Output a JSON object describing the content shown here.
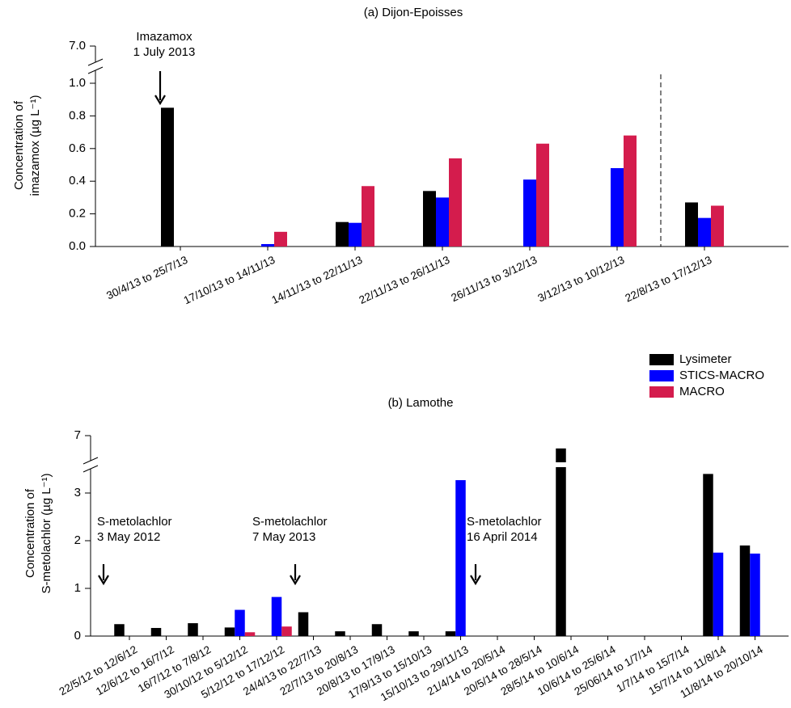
{
  "chart_data": [
    {
      "type": "bar",
      "title": "(a) Dijon-Epoisses",
      "ylabel": [
        "Concentration of",
        "imazamox (µg L⁻¹)"
      ],
      "categories": [
        "30/4/13 to 25/7/13",
        "17/10/13  to 14/11/13",
        "14/11/13 to 22/11/13",
        "22/11/13 to 26/11/13",
        "26/11/13 to 3/12/13",
        "3/12/13 to 10/12/13",
        "22/8/13 to 17/12/13"
      ],
      "series": [
        {
          "color": "#000000",
          "values": [
            0.85,
            null,
            0.15,
            0.34,
            null,
            null,
            0.27
          ]
        },
        {
          "color": "#0000ff",
          "values": [
            null,
            0.015,
            0.145,
            0.3,
            0.41,
            0.48,
            0.175
          ]
        },
        {
          "color": "#d41c4d",
          "values": [
            null,
            0.09,
            0.37,
            0.54,
            0.63,
            0.68,
            0.25
          ]
        }
      ],
      "ylim": [
        0,
        7
      ],
      "yticks": [
        {
          "value": 0,
          "label": "0.0"
        },
        {
          "value": 0.2,
          "label": "0.2"
        },
        {
          "value": 0.4,
          "label": "0.4"
        },
        {
          "value": 0.6,
          "label": "0.6"
        },
        {
          "value": 0.8,
          "label": "0.8"
        },
        {
          "value": 1,
          "label": "1.0"
        },
        {
          "value": 7,
          "label": "7.0"
        }
      ],
      "y_break": true,
      "annotations": [
        [
          "Imazamox",
          "1 July 2013"
        ]
      ]
    },
    {
      "type": "bar",
      "title": "(b) Lamothe",
      "ylabel": [
        "Concentration of",
        "S-metolachlor (µg L⁻¹)"
      ],
      "categories": [
        "22/5/12 to 12/6/12",
        "12/6/12 to 16/7/12",
        "16/7/12 to 7/8/12",
        "30/10/12 to 5/12/12",
        "5/12/12 to 17/12/12",
        "24/4/13 to 22/7/13",
        "22/7/13 to 20/8/13",
        "20/8/13 to 17/9/13",
        "17/9/13 to 15/10/13",
        "15/10/13 to 29/11/13",
        "21/4/14 to 20/5/14",
        "20/5/14 to 28/5/14",
        "28/5/14 to 10/6/14",
        "10/6/14 to 25/6/14",
        "25/06/14 to 1/7/14",
        "1/7/14 to 15/7/14",
        "15/7/14 to 11/8/14",
        "11/8/14 to 20/10/14"
      ],
      "series": [
        {
          "name": "Lysimeter",
          "color": "#000000",
          "values": [
            0.25,
            0.17,
            0.27,
            0.18,
            null,
            0.5,
            0.1,
            0.25,
            0.1,
            0.1,
            null,
            null,
            5.5,
            null,
            null,
            null,
            3.4,
            1.9
          ]
        },
        {
          "name": "STICS-MACRO",
          "color": "#0000ff",
          "values": [
            null,
            null,
            null,
            0.55,
            0.82,
            null,
            null,
            null,
            null,
            3.27,
            null,
            null,
            null,
            null,
            null,
            null,
            1.75,
            1.73
          ]
        },
        {
          "name": "MACRO",
          "color": "#d41c4d",
          "values": [
            null,
            null,
            null,
            0.08,
            0.2,
            null,
            null,
            null,
            null,
            null,
            null,
            null,
            null,
            null,
            null,
            null,
            null,
            null
          ]
        }
      ],
      "ylim": [
        0,
        7
      ],
      "yticks": [
        0,
        1,
        2,
        3,
        7
      ],
      "y_break": true,
      "annotations": [
        [
          "S-metolachlor",
          "3 May 2012"
        ],
        [
          "S-metolachlor",
          "7 May 2013"
        ],
        [
          "S-metolachlor",
          "16 April 2014"
        ]
      ]
    }
  ]
}
